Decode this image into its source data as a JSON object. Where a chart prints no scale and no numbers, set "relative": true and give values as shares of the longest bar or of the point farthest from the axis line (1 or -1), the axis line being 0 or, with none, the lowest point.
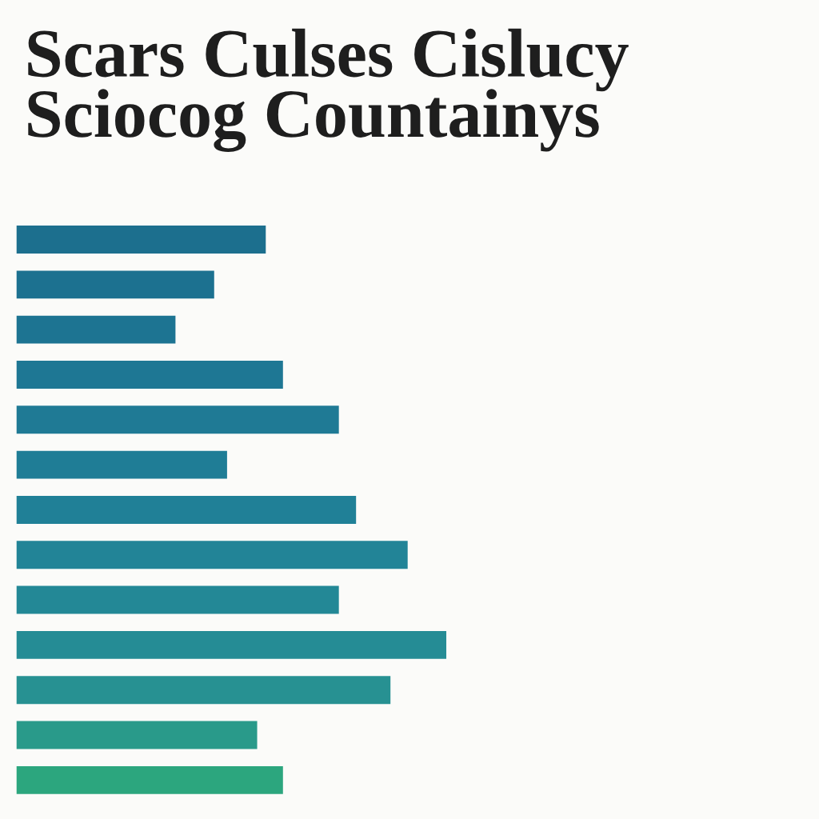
{
  "chart_data": {
    "type": "bar",
    "orientation": "horizontal",
    "relative": true,
    "title": "Scars Culses Cislucy\nSciocog Countainys",
    "categories": [
      null,
      null,
      null,
      null,
      null,
      null,
      null,
      null,
      null,
      null,
      null,
      null,
      null
    ],
    "values": [
      0.58,
      0.46,
      0.37,
      0.62,
      0.75,
      0.49,
      0.79,
      0.91,
      0.75,
      1,
      0.87,
      0.56,
      0.62
    ],
    "colors": [
      "#1c6f8e",
      "#1c7190",
      "#1d7492",
      "#1e7794",
      "#1f7a95",
      "#1f7d96",
      "#208097",
      "#228497",
      "#238896",
      "#258c95",
      "#279192",
      "#299a8a",
      "#2ca67e"
    ]
  }
}
